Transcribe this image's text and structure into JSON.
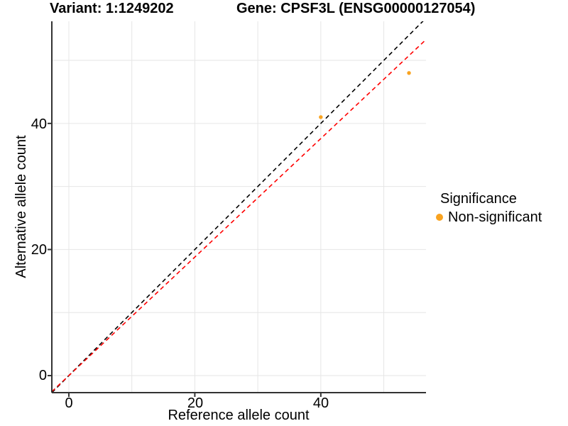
{
  "titles": {
    "variant": "Variant: 1:1249202",
    "gene": "Gene: CPSF3L (ENSG00000127054)"
  },
  "chart_data": {
    "type": "scatter",
    "xlabel": "Reference allele count",
    "ylabel": "Alternative allele count",
    "xlim": [
      -2.7,
      56.7
    ],
    "ylim": [
      -2.7,
      56.2
    ],
    "x_ticks": [
      0,
      20,
      40
    ],
    "y_ticks": [
      0,
      20,
      40
    ],
    "gridlines": [
      0,
      10,
      20,
      30,
      40,
      50
    ],
    "grid": true,
    "grid_color": "#E6E6E6",
    "axis_color": "#333333",
    "series": [
      {
        "name": "Non-significant",
        "color": "#F9A320",
        "point_radius": 2.7,
        "points": [
          {
            "x": 40,
            "y": 41
          },
          {
            "x": 54,
            "y": 48
          }
        ]
      }
    ],
    "reference_lines": [
      {
        "name": "identity-line",
        "slope": 1.0,
        "intercept": 0,
        "color": "#000000",
        "style": "dashed"
      },
      {
        "name": "expected-line",
        "slope": 0.94,
        "intercept": 0,
        "color": "#FF0000",
        "style": "dashed"
      }
    ],
    "legend": {
      "title": "Significance",
      "position": "right",
      "items": [
        {
          "label": "Non-significant",
          "color": "#F9A320"
        }
      ]
    }
  }
}
